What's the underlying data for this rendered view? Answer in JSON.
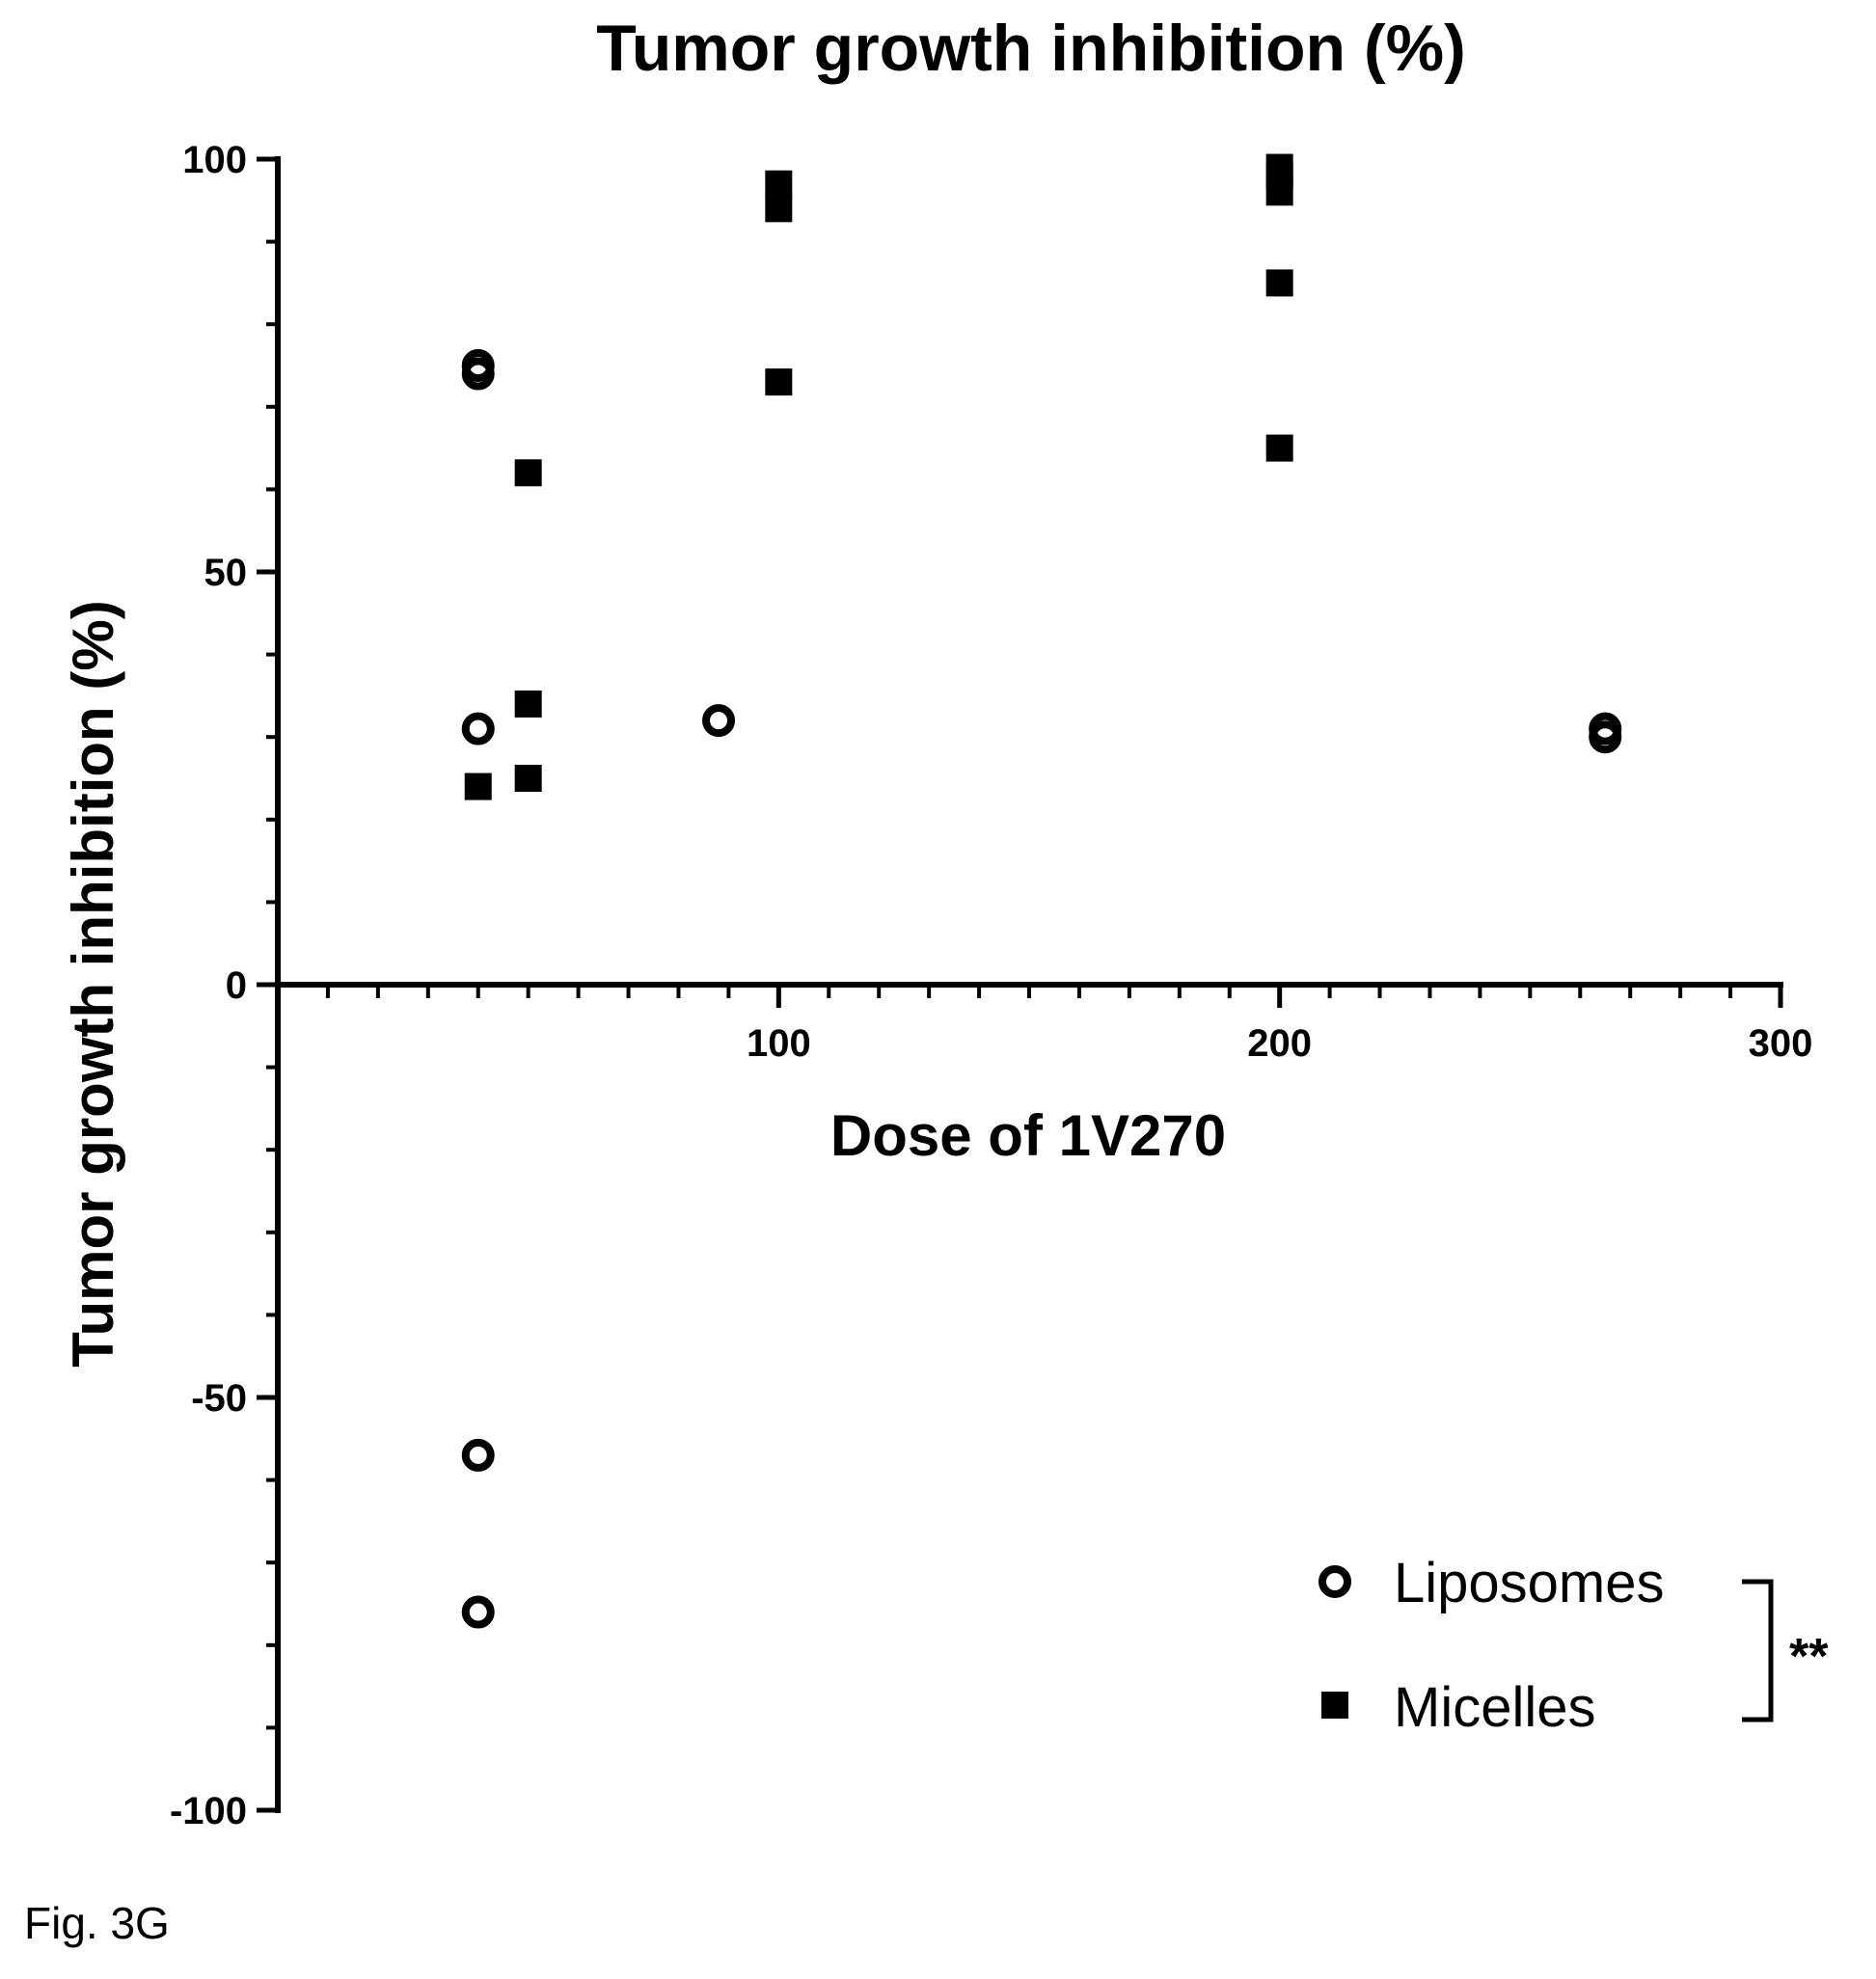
{
  "chart_data": {
    "type": "scatter",
    "title": "Tumor growth inhibition (%)",
    "xlabel": "Dose of 1V270",
    "ylabel": "Tumor growth inhibition (%)",
    "xlim": [
      0,
      300
    ],
    "ylim": [
      -100,
      100
    ],
    "x_ticks_major": [
      100,
      200,
      300
    ],
    "x_tick_minor_step": 10,
    "y_ticks_major": [
      -100,
      -50,
      0,
      50,
      100
    ],
    "y_tick_minor_step": 10,
    "grid": false,
    "legend_position": "bottom-right",
    "series": [
      {
        "name": "Liposomes",
        "marker": "open-circle",
        "color": "#000000",
        "points": [
          {
            "x": 40,
            "y": 74
          },
          {
            "x": 40,
            "y": 75
          },
          {
            "x": 40,
            "y": 31
          },
          {
            "x": 40,
            "y": -57
          },
          {
            "x": 40,
            "y": -76
          },
          {
            "x": 88,
            "y": 32
          },
          {
            "x": 265,
            "y": 31
          },
          {
            "x": 265,
            "y": 30
          }
        ]
      },
      {
        "name": "Micelles",
        "marker": "filled-square",
        "color": "#000000",
        "points": [
          {
            "x": 40,
            "y": 24
          },
          {
            "x": 50,
            "y": 62
          },
          {
            "x": 50,
            "y": 34
          },
          {
            "x": 50,
            "y": 25
          },
          {
            "x": 100,
            "y": 97
          },
          {
            "x": 100,
            "y": 94
          },
          {
            "x": 100,
            "y": 73
          },
          {
            "x": 200,
            "y": 99
          },
          {
            "x": 200,
            "y": 98
          },
          {
            "x": 200,
            "y": 96
          },
          {
            "x": 200,
            "y": 85
          },
          {
            "x": 200,
            "y": 65
          }
        ]
      }
    ],
    "annotation": "**"
  },
  "figure_label": "Fig. 3G"
}
